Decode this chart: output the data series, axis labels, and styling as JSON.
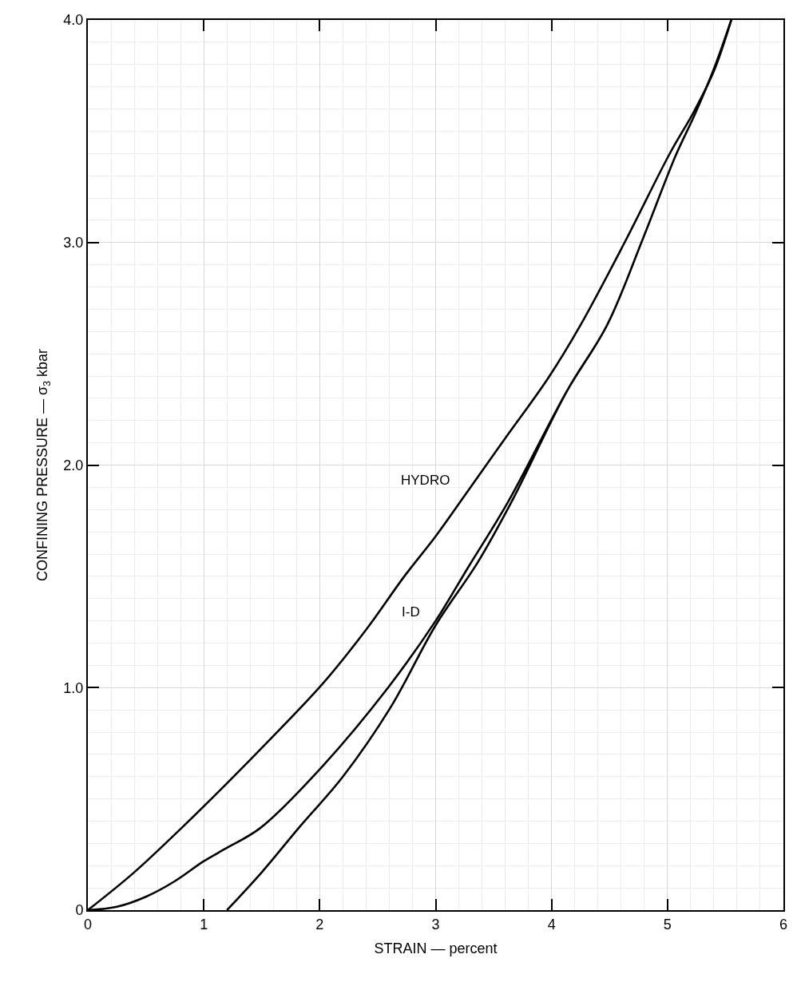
{
  "chart_data": {
    "type": "line",
    "xlabel": "STRAIN — percent",
    "ylabel": "CONFINING PRESSURE — σ$_{3}$ kbar",
    "series": [
      {
        "name": "HYDRO",
        "color": "#000000",
        "x": [
          0,
          0.4,
          0.81,
          1.2,
          1.54,
          2.03,
          2.4,
          2.73,
          3.0,
          3.26,
          3.6,
          3.97,
          4.24,
          4.63,
          5.02,
          5.23,
          5.4,
          5.55
        ],
        "values": [
          0,
          0.17,
          0.37,
          0.57,
          0.75,
          1.02,
          1.26,
          1.5,
          1.68,
          1.87,
          2.12,
          2.39,
          2.62,
          3.0,
          3.4,
          3.59,
          3.77,
          4.0
        ]
      },
      {
        "name": "I-D",
        "color": "#000000",
        "x": [
          0,
          0.25,
          0.5,
          0.75,
          1.0,
          1.2,
          1.49,
          2.03,
          2.59,
          3.0,
          3.28,
          3.62,
          4.13,
          4.48,
          4.79,
          5.07,
          5.24,
          5.4,
          5.55,
          5.4,
          5.24,
          5.07,
          4.79,
          4.48,
          4.13,
          3.65,
          3.36,
          3.0,
          2.61,
          2.2,
          1.82,
          1.5,
          1.2
        ],
        "values": [
          0,
          0.015,
          0.06,
          0.13,
          0.22,
          0.28,
          0.37,
          0.65,
          1.0,
          1.3,
          1.54,
          1.83,
          2.33,
          2.63,
          3.02,
          3.39,
          3.58,
          3.78,
          4.0,
          3.78,
          3.58,
          3.39,
          3.02,
          2.63,
          2.33,
          1.83,
          1.56,
          1.28,
          0.91,
          0.6,
          0.37,
          0.17,
          0
        ]
      }
    ],
    "xlim": [
      0,
      6
    ],
    "xticks": [
      0,
      1,
      2,
      3,
      4,
      5,
      6
    ],
    "ylim": [
      0,
      4
    ],
    "yticks": [
      0,
      {
        "value": 1,
        "label": "1.0"
      },
      {
        "value": 2,
        "label": "2.0"
      },
      {
        "value": 3,
        "label": "3.0"
      },
      {
        "value": 4,
        "label": "4.0"
      }
    ],
    "grid": true,
    "legend": false,
    "marker": "none",
    "line_style": "solid"
  }
}
